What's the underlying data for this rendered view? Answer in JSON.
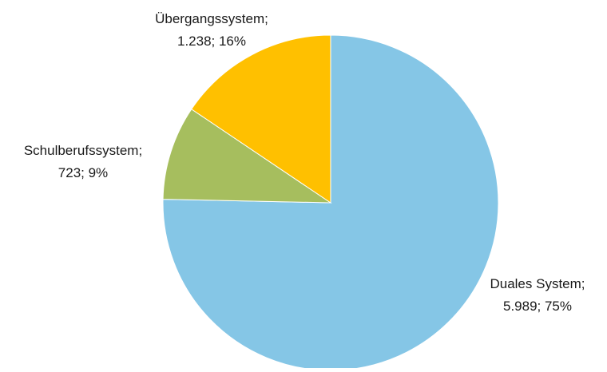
{
  "chart_data": {
    "type": "pie",
    "title": "",
    "start_angle_deg": 0,
    "direction": "clockwise",
    "slices": [
      {
        "name": "Duales System",
        "value": 5989,
        "percent": 75,
        "label_line1": "Duales System;",
        "label_line2": "5.989; 75%",
        "color": "#85C6E6"
      },
      {
        "name": "Schulberufssystem",
        "value": 723,
        "percent": 9,
        "label_line1": "Schulberufssystem;",
        "label_line2": "723; 9%",
        "color": "#A6BE5E"
      },
      {
        "name": "Übergangssystem",
        "value": 1238,
        "percent": 16,
        "label_line1": "Übergangssystem;",
        "label_line2": "1.238; 16%",
        "color": "#FFC000"
      }
    ]
  }
}
